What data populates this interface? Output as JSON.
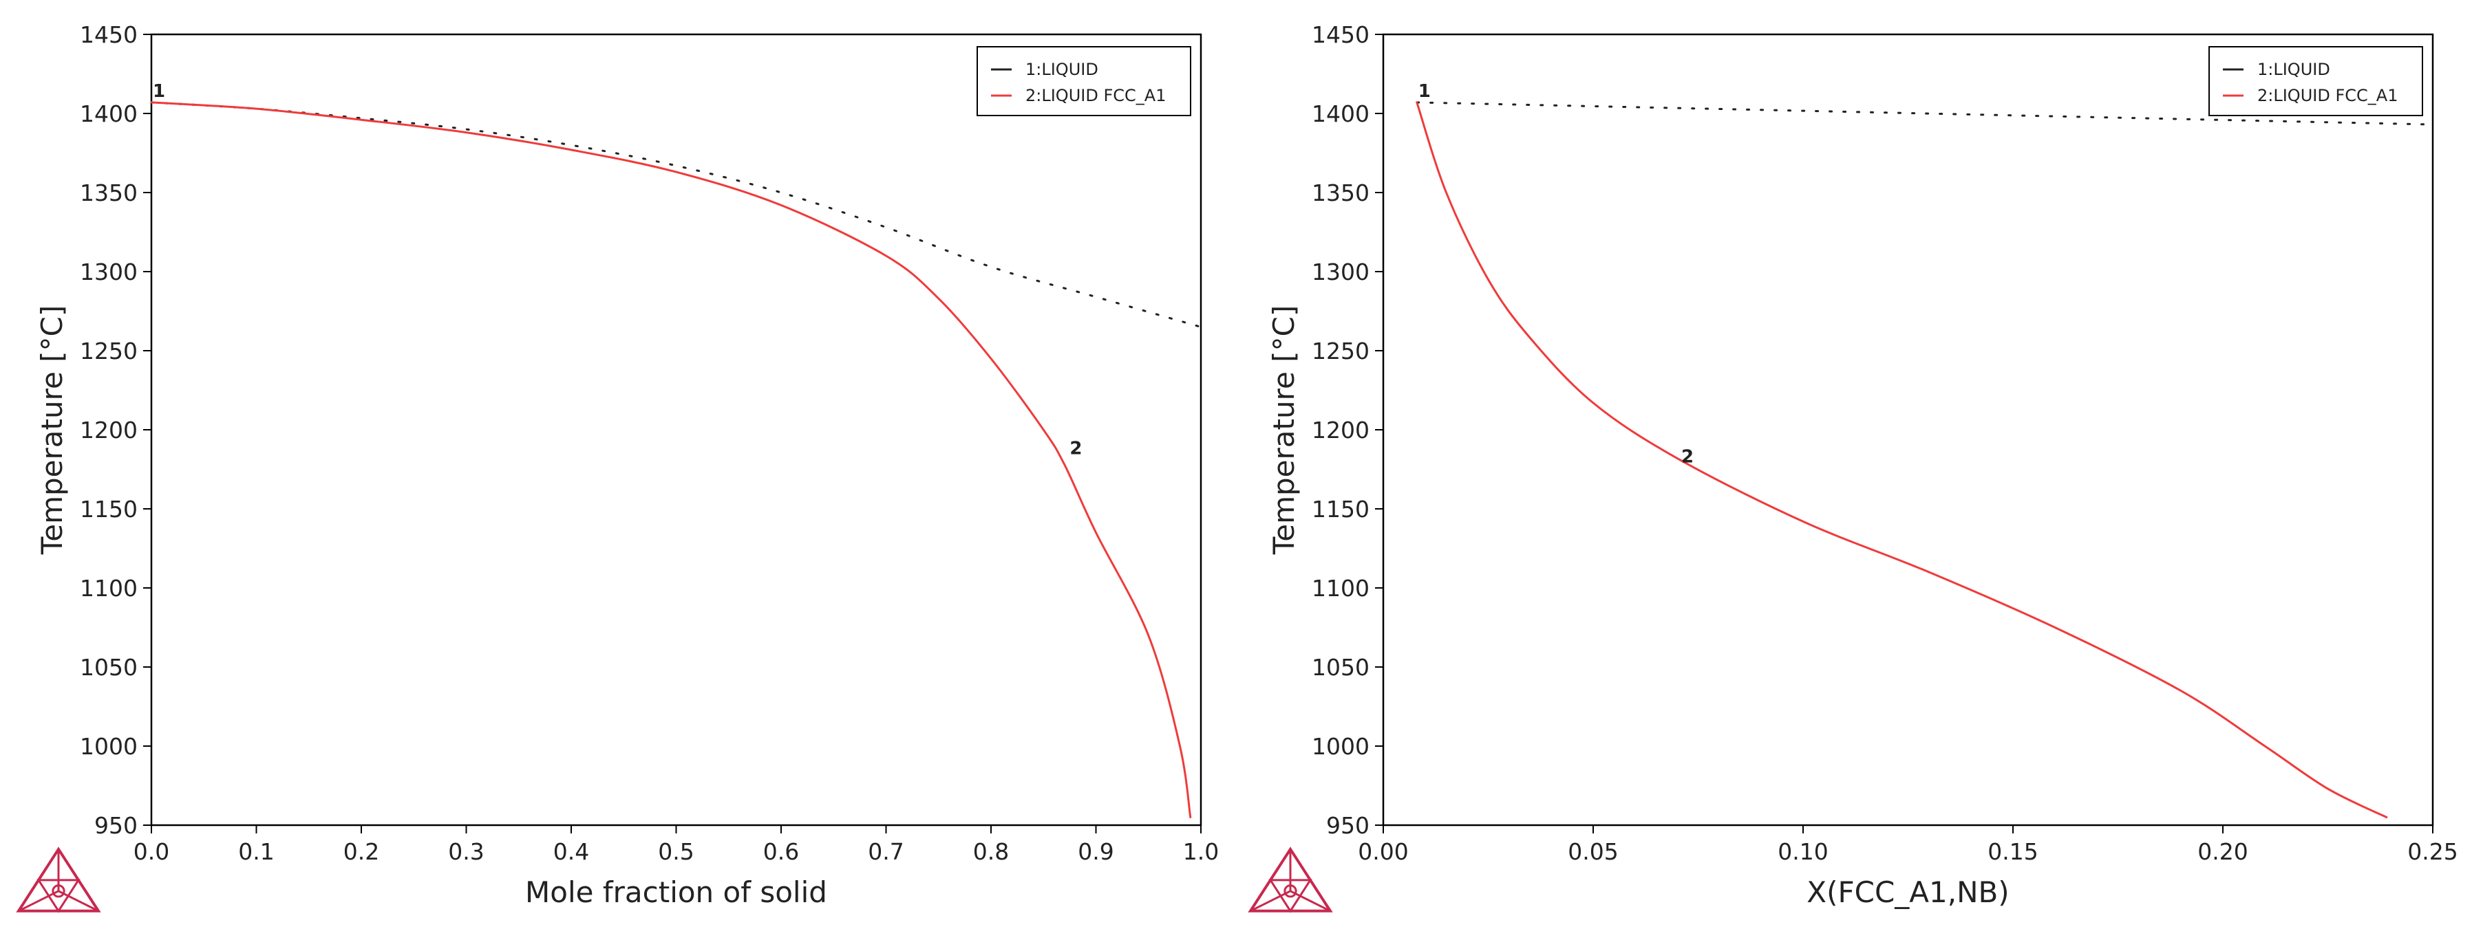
{
  "logo": {
    "name": "thermo-calc-logo-icon"
  },
  "colors": {
    "liquid": "#222222",
    "liquid_fcc": "#ef3b3b",
    "logo": "#c8284f",
    "axes": "#000000"
  },
  "chart_data": [
    {
      "type": "line",
      "title": "",
      "xlabel": "Mole fraction of solid",
      "ylabel": "Temperature [°C]",
      "xlim": [
        0.0,
        1.0
      ],
      "ylim": [
        950,
        1450
      ],
      "xticks": [
        "0.0",
        "0.1",
        "0.2",
        "0.3",
        "0.4",
        "0.5",
        "0.6",
        "0.7",
        "0.8",
        "0.9",
        "1.0"
      ],
      "yticks": [
        "950",
        "1000",
        "1050",
        "1100",
        "1150",
        "1200",
        "1250",
        "1300",
        "1350",
        "1400",
        "1450"
      ],
      "legend_position": "top-right",
      "series": [
        {
          "name": "1:LIQUID",
          "style": "dotted",
          "label": "1",
          "x": [
            0.0,
            0.1,
            0.2,
            0.3,
            0.4,
            0.5,
            0.6,
            0.7,
            0.8,
            0.9,
            1.0
          ],
          "y": [
            1407,
            1403,
            1397,
            1390,
            1380,
            1367,
            1350,
            1328,
            1303,
            1284,
            1265
          ]
        },
        {
          "name": "2:LIQUID FCC_A1",
          "style": "solid",
          "label": "2",
          "x": [
            0.0,
            0.1,
            0.2,
            0.3,
            0.4,
            0.5,
            0.6,
            0.7,
            0.75,
            0.8,
            0.85,
            0.87,
            0.9,
            0.95,
            0.98,
            0.99
          ],
          "y": [
            1407,
            1403,
            1396,
            1388,
            1377,
            1363,
            1342,
            1310,
            1283,
            1245,
            1200,
            1178,
            1135,
            1070,
            1000,
            955
          ]
        }
      ]
    },
    {
      "type": "line",
      "title": "",
      "xlabel": "X(FCC_A1,NB)",
      "ylabel": "Temperature [°C]",
      "xlim": [
        0.0,
        0.25
      ],
      "ylim": [
        950,
        1450
      ],
      "xticks": [
        "0.00",
        "0.05",
        "0.10",
        "0.15",
        "0.20",
        "0.25"
      ],
      "yticks": [
        "950",
        "1000",
        "1050",
        "1100",
        "1150",
        "1200",
        "1250",
        "1300",
        "1350",
        "1400",
        "1450"
      ],
      "legend_position": "top-right",
      "series": [
        {
          "name": "1:LIQUID",
          "style": "dotted",
          "label": "1",
          "x": [
            0.008,
            0.25
          ],
          "y": [
            1407,
            1393
          ]
        },
        {
          "name": "2:LIQUID FCC_A1",
          "style": "solid",
          "label": "2",
          "x": [
            0.008,
            0.015,
            0.025,
            0.035,
            0.05,
            0.07,
            0.1,
            0.13,
            0.16,
            0.19,
            0.21,
            0.225,
            0.239
          ],
          "y": [
            1407,
            1350,
            1295,
            1258,
            1217,
            1182,
            1142,
            1110,
            1075,
            1035,
            1000,
            973,
            955
          ]
        }
      ]
    }
  ]
}
